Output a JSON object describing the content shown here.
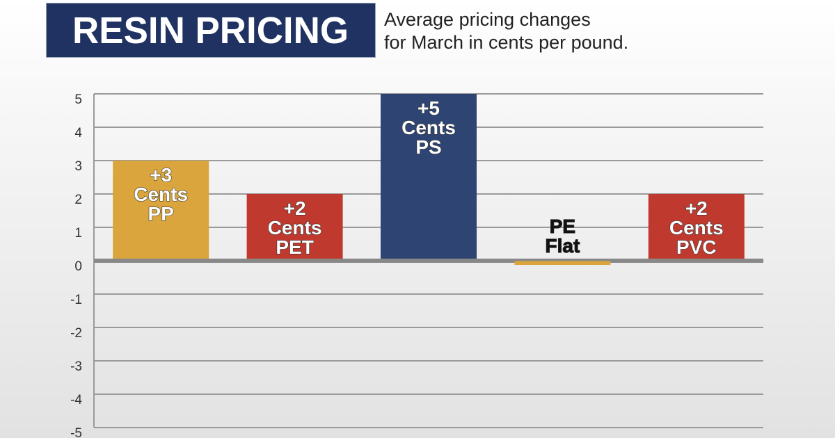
{
  "header": {
    "title": "RESIN PRICING",
    "subtitle_line1": "Average pricing changes",
    "subtitle_line2": "for March in cents per pound."
  },
  "chart_data": {
    "type": "bar",
    "title": "RESIN PRICING",
    "subtitle": "Average pricing changes for March in cents per pound.",
    "categories": [
      "PP",
      "PET",
      "PS",
      "PE",
      "PVC"
    ],
    "values": [
      3,
      2,
      5,
      0,
      2
    ],
    "data_labels": [
      [
        "+3",
        "Cents",
        "PP"
      ],
      [
        "+2",
        "Cents",
        "PET"
      ],
      [
        "+5",
        "Cents",
        "PS"
      ],
      [
        "PE",
        "Flat"
      ],
      [
        "+2",
        "Cents",
        "PVC"
      ]
    ],
    "colors": [
      "#d9a53c",
      "#c0392e",
      "#2e4574",
      "#d9a53c",
      "#c0392e"
    ],
    "label_colors": [
      "#ffffff",
      "#ffffff",
      "#ffffff",
      "#111111",
      "#ffffff"
    ],
    "ylim": [
      -5,
      5
    ],
    "yticks": [
      "5",
      "4",
      "3",
      "2",
      "1",
      "0",
      "-1",
      "-2",
      "-3",
      "-4",
      "-5"
    ],
    "grid": true,
    "legend": "none"
  }
}
